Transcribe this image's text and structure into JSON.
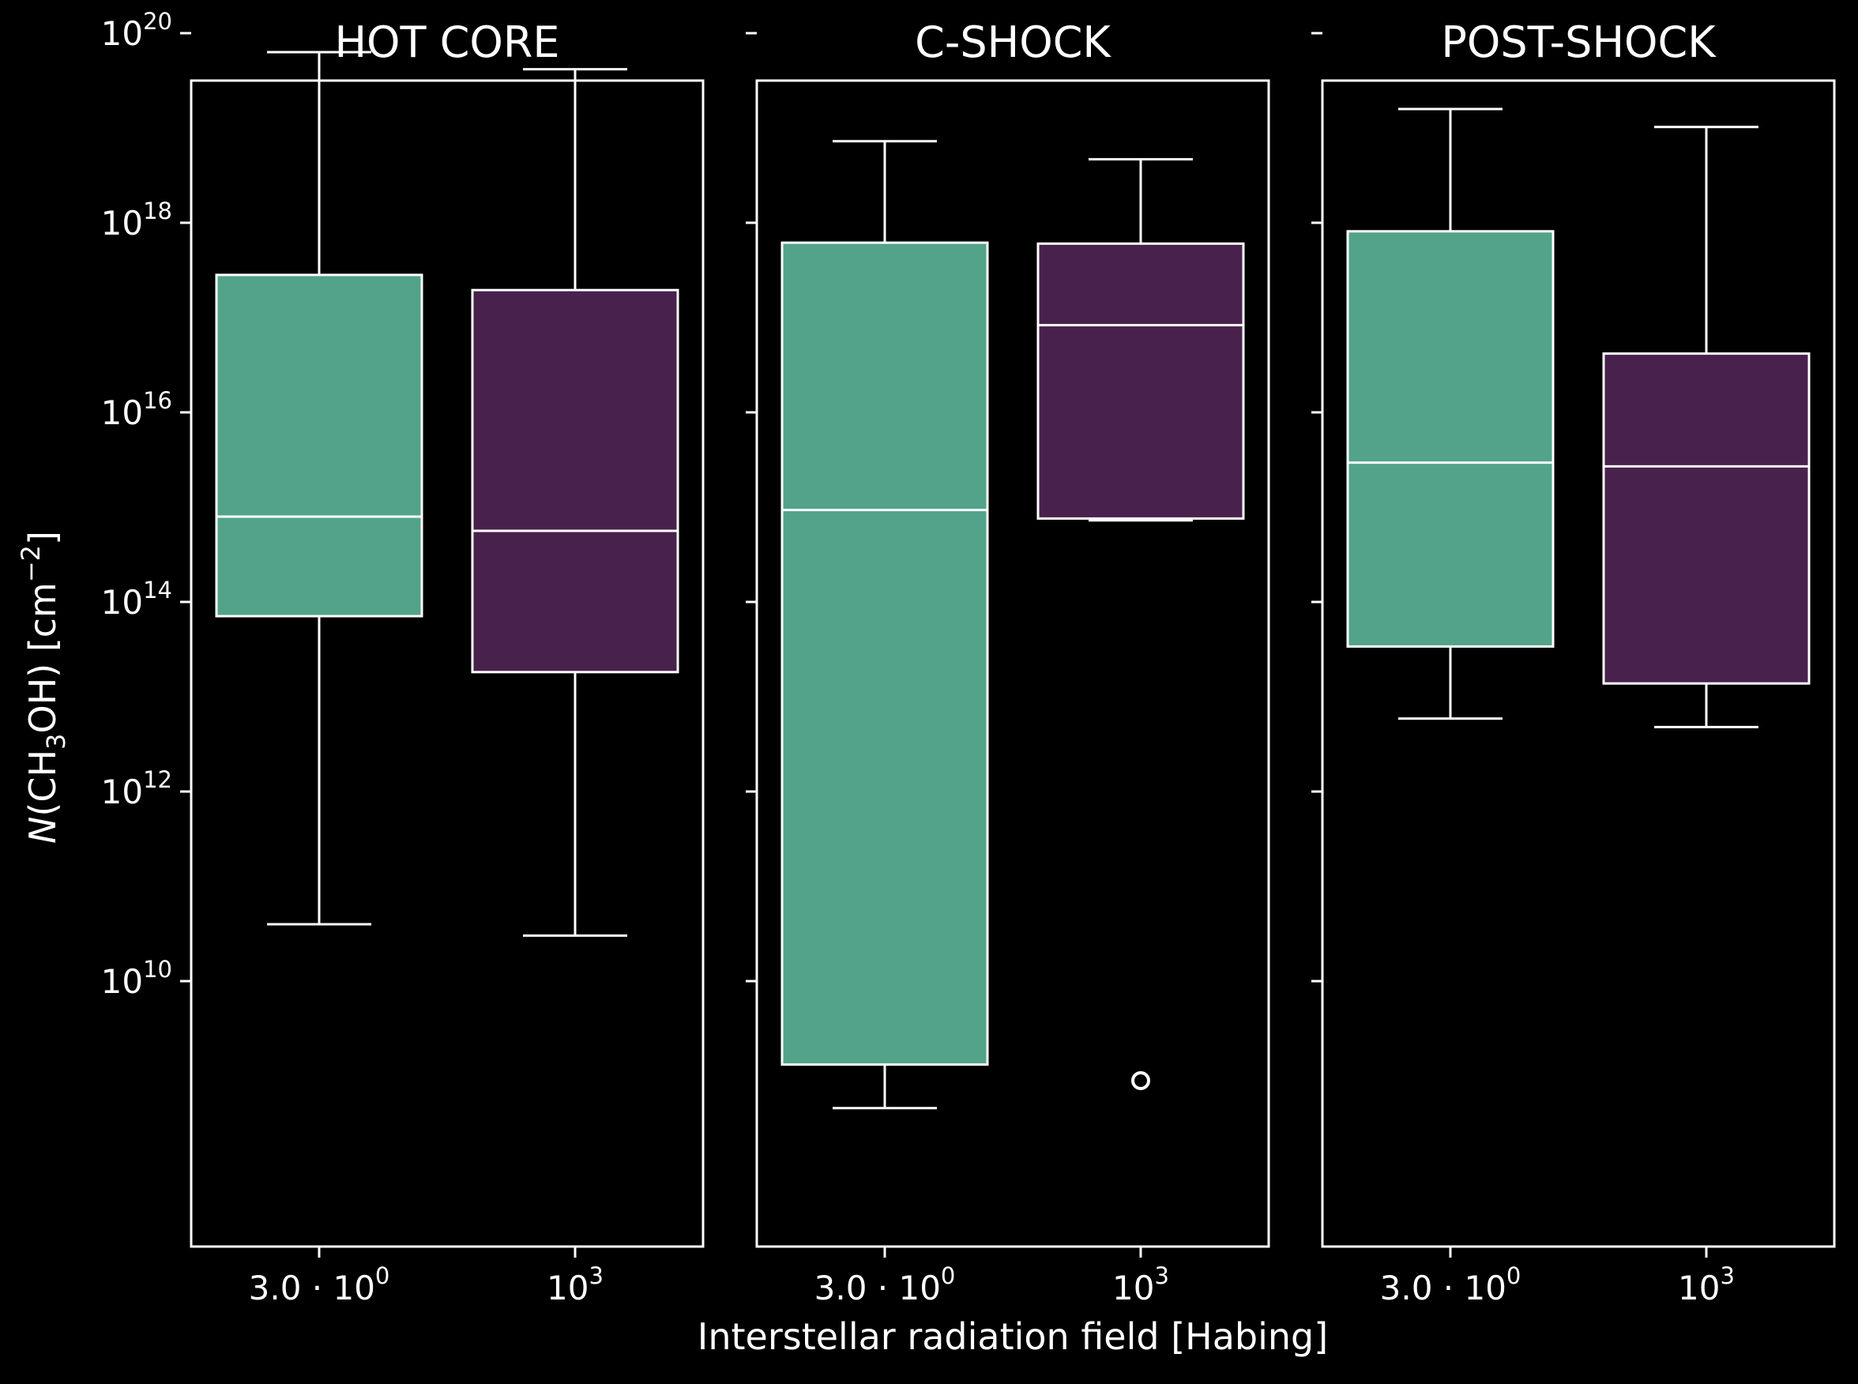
{
  "chart_data": {
    "type": "box",
    "y_scale": "log10",
    "ylim_log10": [
      7.2,
      19.5
    ],
    "y_tick_exponents": [
      10,
      12,
      14,
      16,
      18,
      20
    ],
    "ylabel": {
      "prefix": "N",
      "mid": "(CH",
      "sub": "3",
      "post": "OH) [cm",
      "sup": "−2",
      "end": "]"
    },
    "xlabel": "Interstellar radiation field [Habing]",
    "grid": false,
    "colors": {
      "background": "#000000",
      "box_1": "#52a38a",
      "box_2": "#48224c",
      "stroke": "#ffffff"
    },
    "categories": [
      {
        "base": "3.0 · 10",
        "sup": "0"
      },
      {
        "base": "10",
        "sup": "3"
      }
    ],
    "panels": [
      {
        "title": "HOT CORE",
        "boxes": [
          {
            "category": "3.0·10^0",
            "whisker_low_log10": 10.6,
            "q1_log10": 13.85,
            "median_log10": 14.9,
            "q3_log10": 17.45,
            "whisker_high_log10": 19.8,
            "outliers_log10": []
          },
          {
            "category": "10^3",
            "whisker_low_log10": 10.48,
            "q1_log10": 13.26,
            "median_log10": 14.75,
            "q3_log10": 17.29,
            "whisker_high_log10": 19.62,
            "outliers_log10": []
          }
        ]
      },
      {
        "title": "C-SHOCK",
        "boxes": [
          {
            "category": "3.0·10^0",
            "whisker_low_log10": 8.66,
            "q1_log10": 9.12,
            "median_log10": 14.97,
            "q3_log10": 17.79,
            "whisker_high_log10": 18.86,
            "outliers_log10": []
          },
          {
            "category": "10^3",
            "whisker_low_log10": 14.86,
            "q1_log10": 14.88,
            "median_log10": 16.92,
            "q3_log10": 17.78,
            "whisker_high_log10": 18.67,
            "outliers_log10": [
              8.95
            ]
          }
        ]
      },
      {
        "title": "POST-SHOCK",
        "boxes": [
          {
            "category": "3.0·10^0",
            "whisker_low_log10": 12.77,
            "q1_log10": 13.53,
            "median_log10": 15.47,
            "q3_log10": 17.91,
            "whisker_high_log10": 19.2,
            "outliers_log10": []
          },
          {
            "category": "10^3",
            "whisker_low_log10": 12.68,
            "q1_log10": 13.14,
            "median_log10": 15.43,
            "q3_log10": 16.62,
            "whisker_high_log10": 19.01,
            "outliers_log10": []
          }
        ]
      }
    ]
  }
}
